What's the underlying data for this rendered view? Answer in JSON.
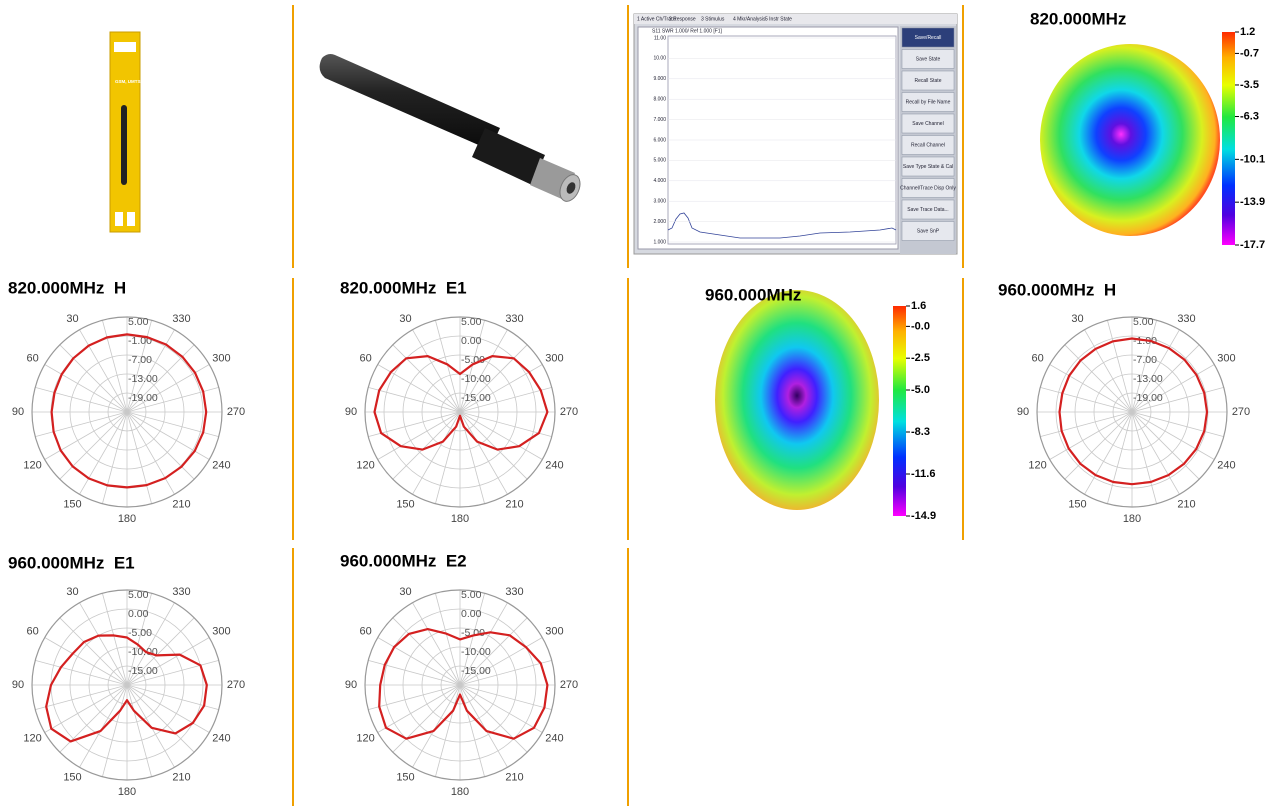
{
  "products": {
    "package_text": "GSM, UMTS Antenna"
  },
  "vna": {
    "menu": [
      "1 Active Ch/Trace",
      "2 Response",
      "3 Stimulus",
      "4 Mkr/Analysis",
      "5 Instr State"
    ],
    "trace_header": "S11 SWR 1.000/ Ref 1.000 [F1]",
    "yticks": [
      "11.00",
      "10.00",
      "9.000",
      "8.000",
      "7.000",
      "6.000",
      "5.000",
      "4.000",
      "3.000",
      "2.000",
      "1.000"
    ],
    "softkeys": [
      "Save/Recall",
      "Save State",
      "Recall State",
      "Recall by File Name",
      "Save Channel",
      "Recall Channel",
      "Save Type State & Cal",
      "Channel/Trace Disp Only",
      "Save Trace Data...",
      "Save SnP"
    ]
  },
  "heatmaps": [
    {
      "title": "820.000MHz",
      "ticks": [
        1.2,
        -0.7,
        -3.5,
        -6.3,
        -10.1,
        -13.9,
        -17.7
      ]
    },
    {
      "title": "960.000MHz",
      "ticks": [
        1.6,
        {
          "value": 0,
          "label": "-0.0"
        },
        -2.5,
        {
          "value": -5,
          "label": "-5.0"
        },
        -8.3,
        -11.6,
        -14.9
      ]
    }
  ],
  "polar": [
    {
      "title": "820.000MHz  H",
      "rlim": [
        -25,
        5
      ],
      "rticks": [
        {
          "value": 5,
          "label": "5.00"
        },
        {
          "value": -1,
          "label": "-1.00"
        },
        {
          "value": -7,
          "label": "-7.00"
        },
        {
          "value": -13,
          "label": "-13.00"
        },
        {
          "value": -19,
          "label": "-19.00"
        }
      ],
      "angles": [
        30,
        60,
        90,
        120,
        150,
        180,
        210,
        240,
        270,
        300,
        330
      ],
      "values": [
        -0.5,
        -0.6,
        -0.8,
        -1,
        -1.2,
        -1.3,
        -1.2,
        -1,
        -0.8,
        -0.7,
        -0.8,
        -1,
        -1.2,
        -1.1,
        -0.9,
        -0.6,
        -0.3,
        -0.1,
        0,
        -0.1,
        -0.2,
        -0.3,
        -0.4,
        -0.5
      ]
    },
    {
      "title": "820.000MHz  E1",
      "rlim": [
        -20,
        5
      ],
      "rticks": [
        {
          "value": 5,
          "label": "5.00"
        },
        {
          "value": 0,
          "label": "0.00"
        },
        {
          "value": -5,
          "label": "-5.00"
        },
        {
          "value": -10,
          "label": "-10.00"
        },
        {
          "value": -15,
          "label": "-15.00"
        }
      ],
      "angles": [
        30,
        60,
        90,
        120,
        150,
        180,
        210,
        240,
        270,
        300,
        330
      ],
      "values": [
        -10,
        -7,
        -3,
        0,
        1,
        2,
        2.5,
        1.5,
        -2,
        -6,
        -11,
        -16,
        -19,
        -16,
        -11,
        -6,
        -2,
        1.5,
        3,
        2,
        1,
        0,
        -3,
        -7
      ]
    },
    {
      "title": "960.000MHz  H",
      "rlim": [
        -25,
        5
      ],
      "rticks": [
        {
          "value": 5,
          "label": "5.00"
        },
        {
          "value": -1,
          "label": "-1.00"
        },
        {
          "value": -7,
          "label": "-7.00"
        },
        {
          "value": -13,
          "label": "-13.00"
        },
        {
          "value": -19,
          "label": "-19.00"
        }
      ],
      "angles": [
        30,
        60,
        90,
        120,
        150,
        180,
        210,
        240,
        270,
        300,
        330
      ],
      "values": [
        -1.8,
        -1.9,
        -2,
        -2,
        -2.1,
        -2.2,
        -2.1,
        -2,
        -1.9,
        -1.9,
        -2,
        -2.1,
        -2.2,
        -2.1,
        -2,
        -1.8,
        -1.6,
        -1.4,
        -1.3,
        -1.4,
        -1.5,
        -1.6,
        -1.7,
        -1.8
      ]
    },
    {
      "title": "960.000MHz  E1",
      "rlim": [
        -20,
        5
      ],
      "rticks": [
        {
          "value": 5,
          "label": "5.00"
        },
        {
          "value": 0,
          "label": "0.00"
        },
        {
          "value": -5,
          "label": "-5.00"
        },
        {
          "value": -10,
          "label": "-10.00"
        },
        {
          "value": -15,
          "label": "-15.00"
        }
      ],
      "angles": [
        30,
        60,
        90,
        120,
        150,
        180,
        210,
        240,
        270,
        300,
        330
      ],
      "values": [
        -7.5,
        -6.5,
        -5,
        -4,
        -3.5,
        -2,
        0,
        2,
        3,
        1,
        -6,
        -13,
        -16,
        -13,
        -7,
        -2,
        0,
        1,
        1,
        0,
        -4,
        -9,
        -10,
        -9
      ]
    },
    {
      "title": "960.000MHz  E2",
      "rlim": [
        -20,
        5
      ],
      "rticks": [
        {
          "value": 5,
          "label": "5.00"
        },
        {
          "value": 0,
          "label": "0.00"
        },
        {
          "value": -5,
          "label": "-5.00"
        },
        {
          "value": -10,
          "label": "-10.00"
        },
        {
          "value": -15,
          "label": "-15.00"
        }
      ],
      "angles": [
        30,
        60,
        90,
        120,
        150,
        180,
        210,
        240,
        270,
        300,
        330
      ],
      "values": [
        -8,
        -6,
        -3,
        -1,
        0,
        0.5,
        1,
        2,
        2.5,
        0,
        -6,
        -13,
        -17.5,
        -13,
        -6,
        0,
        2.5,
        3,
        3,
        2,
        0,
        -1.5,
        -4,
        -6.5
      ]
    }
  ]
}
